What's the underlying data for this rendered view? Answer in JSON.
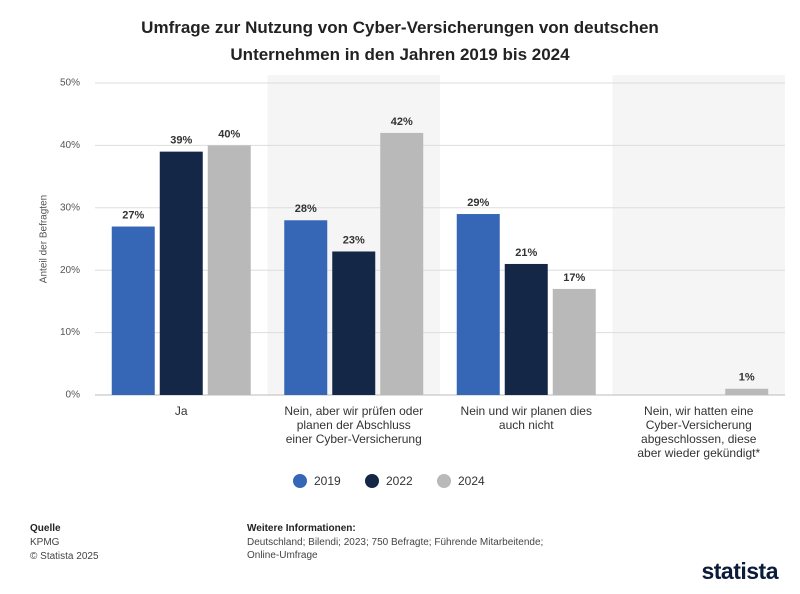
{
  "chart_data": {
    "type": "bar",
    "title": "Umfrage zur Nutzung von Cyber-Versicherungen von deutschen Unternehmen in den Jahren 2019 bis 2024",
    "y_label": "Anteil der Befragten",
    "categories": [
      "Ja",
      "Nein, aber wir prüfen oder planen der Abschluss einer Cyber-Versicherung",
      "Nein und wir planen dies auch nicht",
      "Nein, wir hatten eine Cyber-Versicherung abgeschlossen, diese aber wieder gekündigt*"
    ],
    "series": [
      {
        "name": "2019",
        "color": "#3567b6",
        "values": [
          27,
          28,
          29,
          null
        ],
        "value_labels": [
          "27%",
          "28%",
          "29%",
          null
        ]
      },
      {
        "name": "2022",
        "color": "#142746",
        "values": [
          39,
          23,
          21,
          null
        ],
        "value_labels": [
          "39%",
          "23%",
          "21%",
          null
        ]
      },
      {
        "name": "2024",
        "color": "#b9b9b9",
        "values": [
          40,
          42,
          17,
          1
        ],
        "value_labels": [
          "40%",
          "42%",
          "17%",
          "1%"
        ]
      }
    ],
    "ylim": [
      0,
      50
    ],
    "yticks": [
      {
        "value": 0,
        "label": "0%"
      },
      {
        "value": 10,
        "label": "10%"
      },
      {
        "value": 20,
        "label": "20%"
      },
      {
        "value": 30,
        "label": "30%"
      },
      {
        "value": 40,
        "label": "40%"
      },
      {
        "value": 50,
        "label": "50%"
      }
    ],
    "grid": true,
    "legend": "bottom"
  },
  "footer": {
    "source_label": "Quelle",
    "source": "KPMG",
    "copyright": "© Statista 2025",
    "info_label": "Weitere Informationen:",
    "info": "Deutschland; Bilendi; 2023; 750 Befragte; Führende Mitarbeitende; Online-Umfrage",
    "brand": "statista"
  }
}
